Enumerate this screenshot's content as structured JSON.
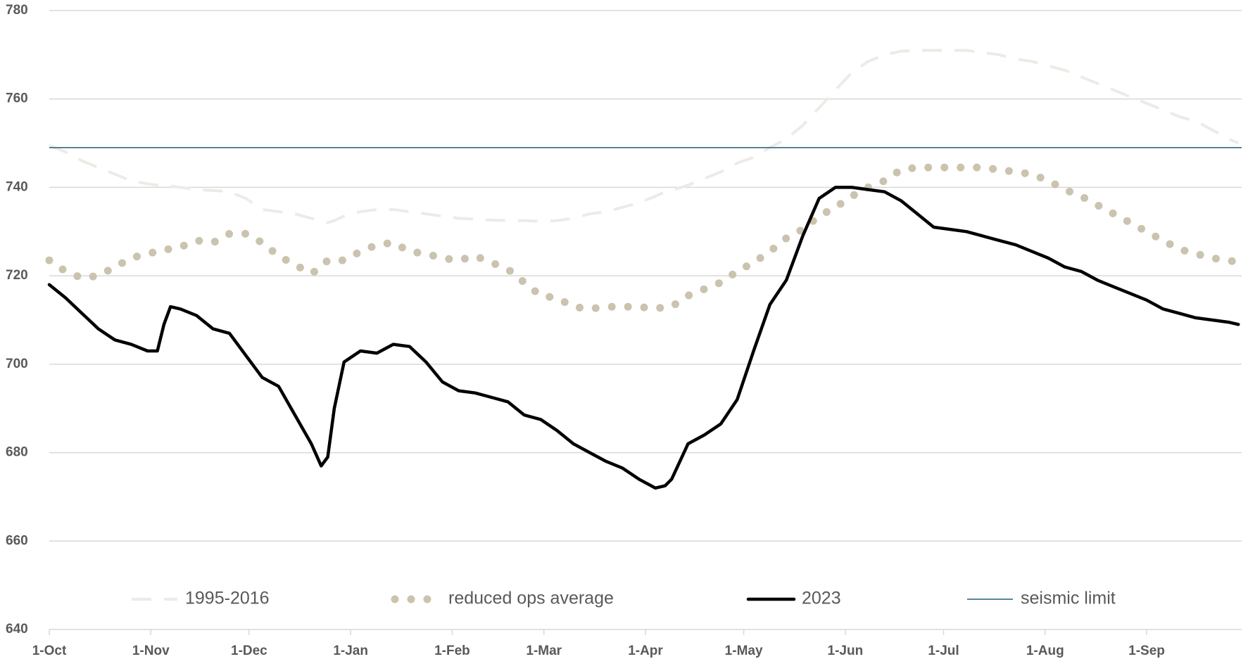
{
  "chart_data": {
    "type": "line",
    "x": [
      0,
      5,
      10,
      15,
      20,
      25,
      30,
      33,
      35,
      37,
      40,
      45,
      50,
      55,
      60,
      65,
      70,
      75,
      80,
      83,
      85,
      87,
      90,
      95,
      100,
      105,
      110,
      115,
      120,
      125,
      130,
      135,
      140,
      145,
      150,
      155,
      160,
      165,
      170,
      175,
      180,
      185,
      188,
      190,
      195,
      200,
      205,
      210,
      215,
      220,
      225,
      230,
      235,
      240,
      245,
      250,
      255,
      260,
      265,
      270,
      275,
      280,
      285,
      290,
      295,
      300,
      305,
      310,
      315,
      320,
      325,
      330,
      335,
      340,
      345,
      350,
      355,
      360,
      363
    ],
    "xlim": [
      0,
      364
    ],
    "xticks": [
      {
        "value": 0,
        "label": "1-Oct"
      },
      {
        "value": 31,
        "label": "1-Nov"
      },
      {
        "value": 61,
        "label": "1-Dec"
      },
      {
        "value": 92,
        "label": "1-Jan"
      },
      {
        "value": 123,
        "label": "1-Feb"
      },
      {
        "value": 151,
        "label": "1-Mar"
      },
      {
        "value": 182,
        "label": "1-Apr"
      },
      {
        "value": 212,
        "label": "1-May"
      },
      {
        "value": 243,
        "label": "1-Jun"
      },
      {
        "value": 273,
        "label": "1-Jul"
      },
      {
        "value": 304,
        "label": "1-Aug"
      },
      {
        "value": 335,
        "label": "1-Sep"
      }
    ],
    "ylim": [
      640,
      780
    ],
    "yticks": [
      640,
      660,
      680,
      700,
      720,
      740,
      760,
      780
    ],
    "grid": true,
    "legend": "bottom",
    "series": [
      {
        "name": "1995-2016",
        "color": "#ecebe6",
        "style": "dashed",
        "values": [
          749.5,
          748,
          746,
          744.5,
          743,
          741.5,
          740.8,
          740.5,
          740.5,
          740.3,
          740,
          739.5,
          739.3,
          739,
          737.5,
          735,
          734.5,
          734,
          733,
          732.5,
          732,
          732.5,
          733.5,
          734.5,
          735,
          735,
          734.5,
          734,
          733.5,
          733,
          732.8,
          732.6,
          732.5,
          732.5,
          732.3,
          732.5,
          733,
          734,
          734.5,
          735.5,
          736.5,
          738,
          739,
          739.3,
          740.5,
          742,
          743.5,
          745.5,
          746.8,
          749,
          751,
          754,
          758,
          762,
          766,
          768.5,
          770,
          770.8,
          771,
          771,
          771,
          771,
          770.5,
          770,
          769,
          768.5,
          767.5,
          766.5,
          765,
          763.5,
          762,
          760.5,
          759,
          757.5,
          756,
          755,
          753,
          751,
          750
        ]
      },
      {
        "name": "reduced ops average",
        "color": "#cac3ae",
        "style": "dotted",
        "values": [
          723.5,
          721,
          719.5,
          720,
          722,
          724,
          725,
          725.5,
          726,
          726,
          726.5,
          728,
          727.5,
          729.5,
          729.5,
          727.5,
          724.5,
          722.5,
          720.5,
          722,
          723.5,
          723.5,
          723.5,
          725.5,
          727,
          727.5,
          725.5,
          725,
          724,
          723.5,
          724.5,
          723,
          721.5,
          718.5,
          715.5,
          715,
          713,
          712.5,
          713,
          713,
          713,
          712.5,
          713,
          713,
          715.5,
          717,
          718.5,
          721,
          723,
          725.5,
          728.5,
          730.5,
          733.5,
          735.5,
          738,
          740,
          741.5,
          744,
          744.5,
          744.5,
          744.5,
          744.5,
          744.5,
          744,
          743.5,
          743,
          741.5,
          739.5,
          738,
          736,
          734,
          732,
          730,
          728,
          726,
          725,
          724,
          723.5,
          723
        ]
      },
      {
        "name": "2023",
        "color": "#000000",
        "style": "solid",
        "values": [
          718,
          715,
          711.5,
          708,
          705.5,
          704.5,
          703,
          703,
          709,
          713,
          712.5,
          711,
          708,
          707,
          702,
          697,
          695,
          688.5,
          682,
          677,
          679,
          690,
          700.5,
          703,
          702.5,
          704.5,
          704,
          700.5,
          696,
          694,
          693.5,
          692.5,
          691.5,
          688.5,
          687.5,
          685,
          682,
          680,
          678,
          676.5,
          674,
          672,
          672.5,
          674,
          682,
          684,
          686.5,
          692,
          703,
          713.5,
          719,
          729,
          737.5,
          740,
          740,
          739.5,
          739,
          737,
          734,
          731,
          730.5,
          730,
          729,
          728,
          727,
          725.5,
          724,
          722,
          721,
          719,
          717.5,
          716,
          714.5,
          712.5,
          711.5,
          710.5,
          710,
          709.5,
          709
        ]
      }
    ],
    "reference_lines": [
      {
        "name": "seismic limit",
        "color": "#1f5f7a",
        "value": 749
      }
    ]
  }
}
